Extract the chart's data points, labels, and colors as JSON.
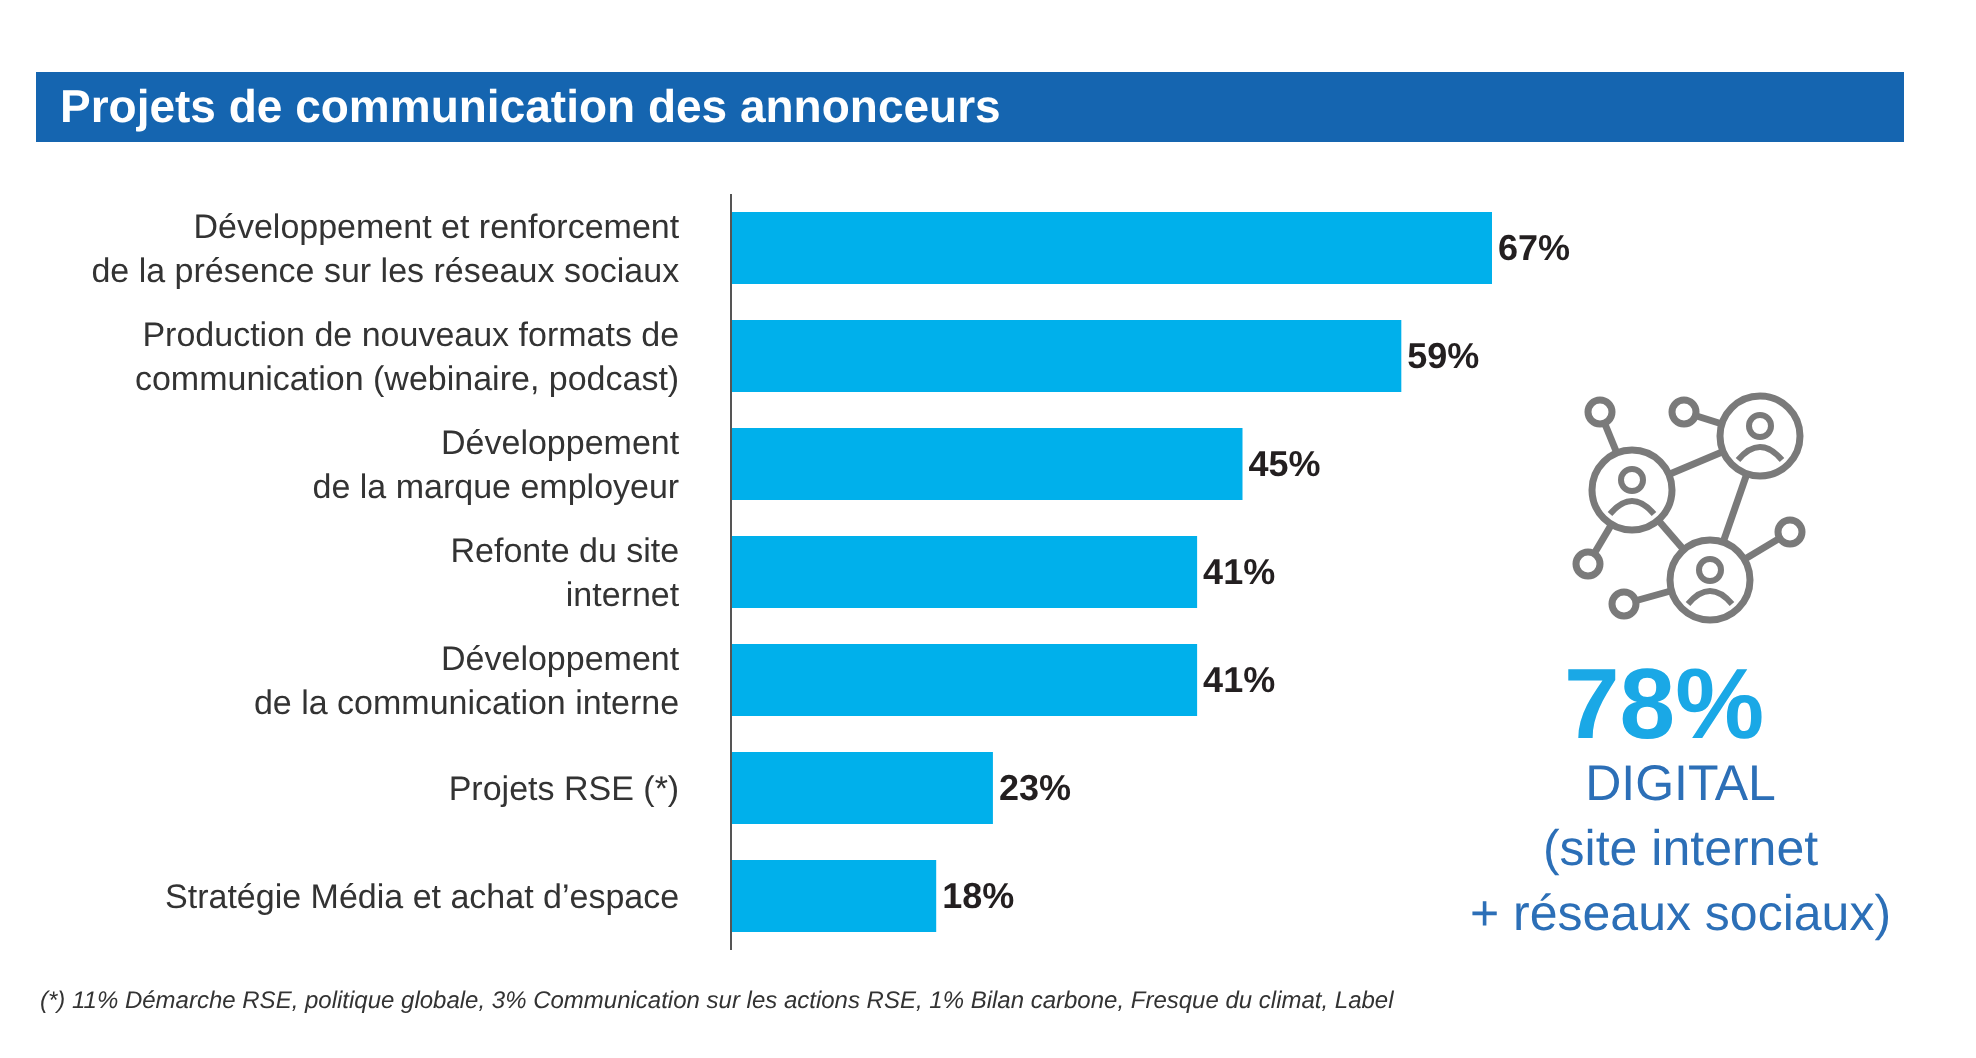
{
  "chart_data": {
    "type": "bar",
    "title": "Projets de communication des annonceurs",
    "orientation": "horizontal",
    "categories": [
      "Développement et renforcement\nde la présence sur les réseaux sociaux",
      "Production de nouveaux formats de\ncommunication (webinaire, podcast)",
      "Développement\nde la marque employeur",
      "Refonte du site\ninternet",
      "Développement\nde la communication interne",
      "Projets RSE (*)",
      "Stratégie Média et achat d’espace"
    ],
    "values": [
      67,
      59,
      45,
      41,
      41,
      23,
      18
    ],
    "value_labels": [
      "67%",
      "59%",
      "45%",
      "41%",
      "41%",
      "23%",
      "18%"
    ],
    "color": "#00b0eb",
    "tick_labels": "y",
    "annotations": [
      "78%",
      "DIGITAL\n(site internet\n+ réseaux sociaux)",
      "(*) 11% Démarche RSE, politique globale, 3% Communication sur les actions RSE, 1% Bilan carbone, Fresque du climat, Label"
    ]
  }
}
